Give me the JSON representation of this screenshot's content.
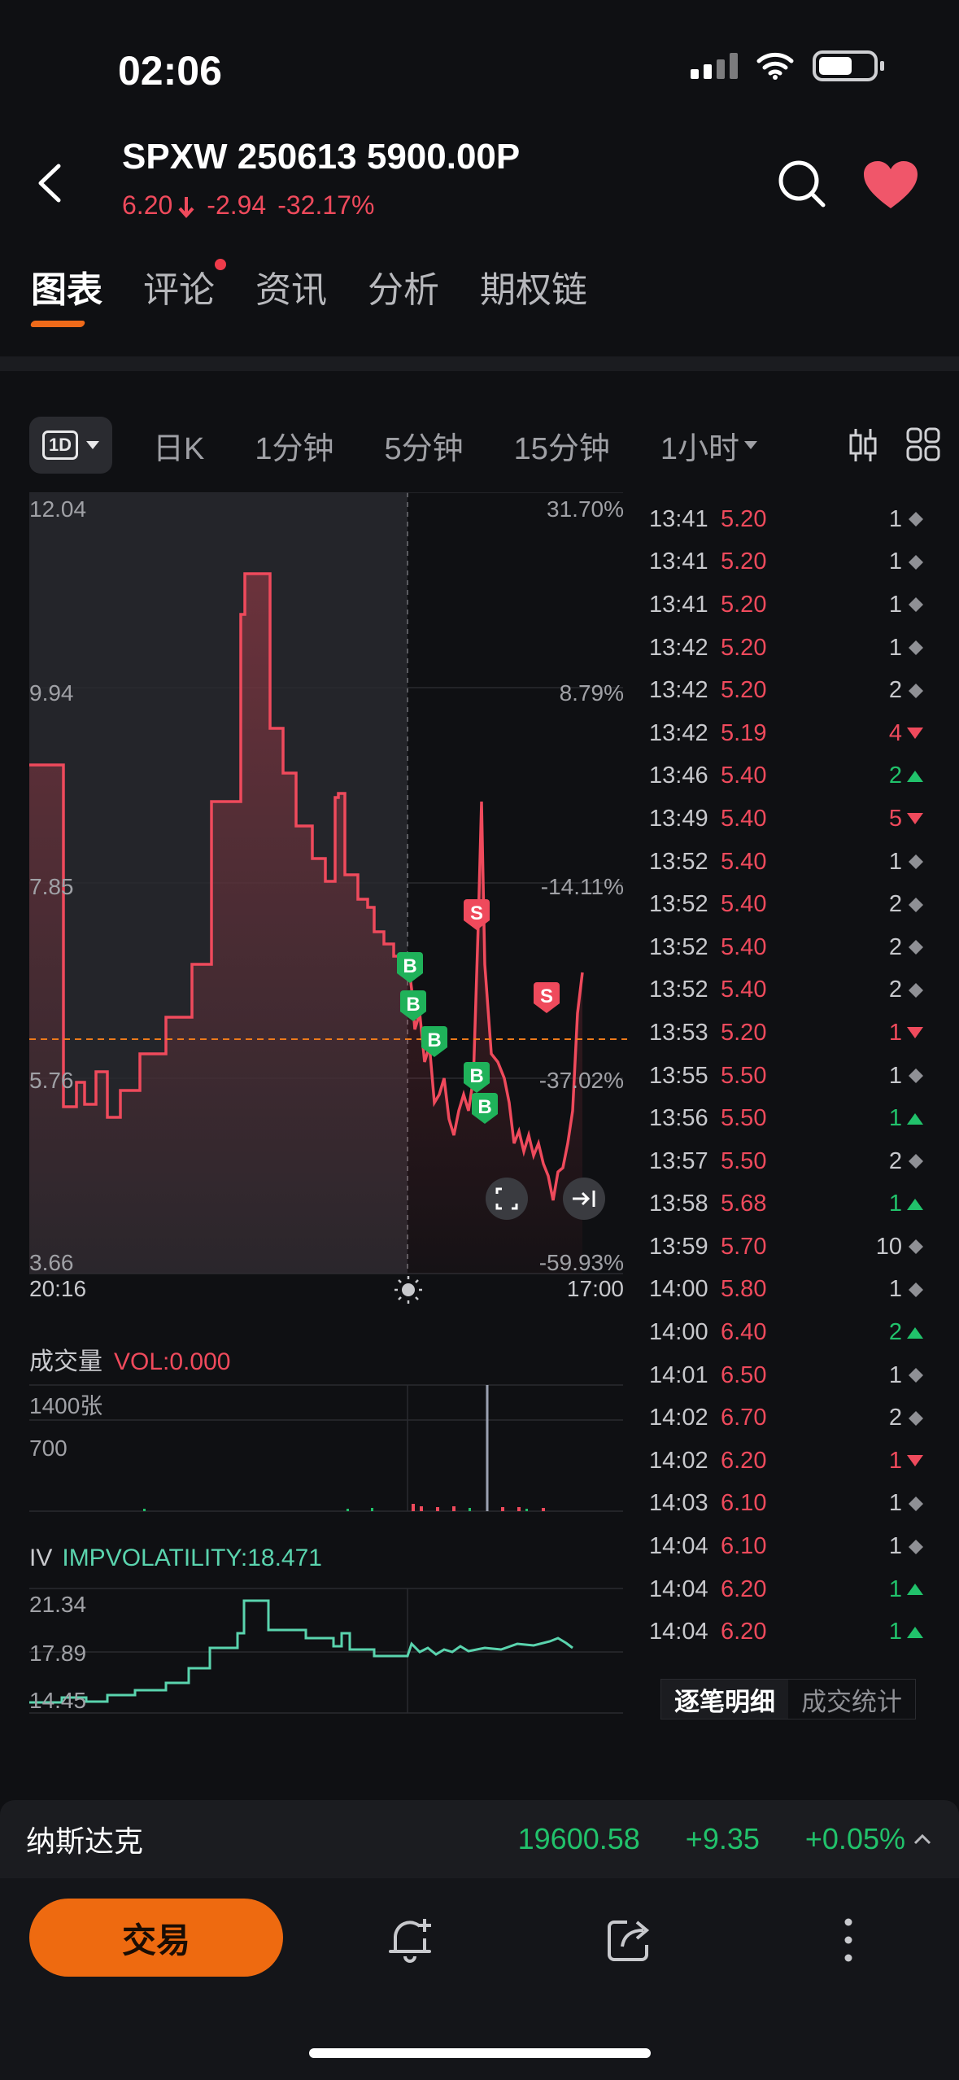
{
  "status": {
    "time": "02:06"
  },
  "header": {
    "ticker": "SPXW 250613 5900.00P",
    "price": "6.20",
    "change": "-2.94",
    "change_pct": "-32.17%"
  },
  "tabs": [
    {
      "label": "图表",
      "active": true
    },
    {
      "label": "评论",
      "badge": true
    },
    {
      "label": "资讯"
    },
    {
      "label": "分析"
    },
    {
      "label": "期权链"
    }
  ],
  "controls": {
    "range": "1D",
    "items": [
      "日K",
      "1分钟",
      "5分钟",
      "15分钟",
      "1小时"
    ]
  },
  "chart_data": {
    "type": "line",
    "y_left_ticks": [
      "12.04",
      "9.94",
      "7.85",
      "5.76",
      "3.66"
    ],
    "y_right_ticks": [
      "31.70%",
      "8.79%",
      "-14.11%",
      "-37.02%",
      "-59.93%"
    ],
    "x_ticks": [
      "20:16",
      "17:00"
    ],
    "ylim": [
      3.66,
      12.04
    ],
    "reference_price": 6.2,
    "markers": [
      "S",
      "B",
      "B",
      "B",
      "B",
      "B",
      "S"
    ]
  },
  "volume": {
    "title": "成交量",
    "value": "VOL:0.000",
    "ticks": [
      "1400张",
      "700"
    ]
  },
  "iv": {
    "title": "IV",
    "value": "IMPVOLATILITY:18.471",
    "ticks": [
      "21.34",
      "17.89",
      "14.45"
    ]
  },
  "trades": [
    {
      "t": "13:41",
      "p": "5.20",
      "v": "1",
      "m": "n"
    },
    {
      "t": "13:41",
      "p": "5.20",
      "v": "1",
      "m": "n"
    },
    {
      "t": "13:41",
      "p": "5.20",
      "v": "1",
      "m": "n"
    },
    {
      "t": "13:42",
      "p": "5.20",
      "v": "1",
      "m": "n"
    },
    {
      "t": "13:42",
      "p": "5.20",
      "v": "2",
      "m": "n"
    },
    {
      "t": "13:42",
      "p": "5.19",
      "v": "4",
      "m": "d"
    },
    {
      "t": "13:46",
      "p": "5.40",
      "v": "2",
      "m": "u"
    },
    {
      "t": "13:49",
      "p": "5.40",
      "v": "5",
      "m": "d"
    },
    {
      "t": "13:52",
      "p": "5.40",
      "v": "1",
      "m": "n"
    },
    {
      "t": "13:52",
      "p": "5.40",
      "v": "2",
      "m": "n"
    },
    {
      "t": "13:52",
      "p": "5.40",
      "v": "2",
      "m": "n"
    },
    {
      "t": "13:52",
      "p": "5.40",
      "v": "2",
      "m": "n"
    },
    {
      "t": "13:53",
      "p": "5.20",
      "v": "1",
      "m": "d"
    },
    {
      "t": "13:55",
      "p": "5.50",
      "v": "1",
      "m": "n"
    },
    {
      "t": "13:56",
      "p": "5.50",
      "v": "1",
      "m": "u"
    },
    {
      "t": "13:57",
      "p": "5.50",
      "v": "2",
      "m": "n"
    },
    {
      "t": "13:58",
      "p": "5.68",
      "v": "1",
      "m": "u"
    },
    {
      "t": "13:59",
      "p": "5.70",
      "v": "10",
      "m": "n"
    },
    {
      "t": "14:00",
      "p": "5.80",
      "v": "1",
      "m": "n"
    },
    {
      "t": "14:00",
      "p": "6.40",
      "v": "2",
      "m": "u"
    },
    {
      "t": "14:01",
      "p": "6.50",
      "v": "1",
      "m": "n"
    },
    {
      "t": "14:02",
      "p": "6.70",
      "v": "2",
      "m": "n"
    },
    {
      "t": "14:02",
      "p": "6.20",
      "v": "1",
      "m": "d"
    },
    {
      "t": "14:03",
      "p": "6.10",
      "v": "1",
      "m": "n"
    },
    {
      "t": "14:04",
      "p": "6.10",
      "v": "1",
      "m": "n"
    },
    {
      "t": "14:04",
      "p": "6.20",
      "v": "1",
      "m": "u"
    },
    {
      "t": "14:04",
      "p": "6.20",
      "v": "1",
      "m": "u"
    }
  ],
  "trade_tabs": [
    "逐笔明细",
    "成交统计"
  ],
  "index": {
    "name": "纳斯达克",
    "value": "19600.58",
    "change": "+9.35",
    "change_pct": "+0.05%"
  },
  "bottom": {
    "trade_label": "交易"
  }
}
